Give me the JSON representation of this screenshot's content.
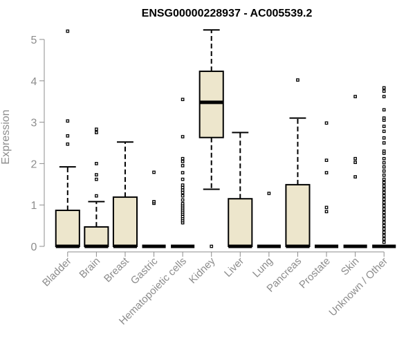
{
  "chart_data": {
    "type": "box",
    "title": "ENSG00000228937 - AC005539.2",
    "xlabel": "",
    "ylabel": "Expression",
    "ylim": [
      0,
      5.3
    ],
    "yticks": [
      0,
      1,
      2,
      3,
      4,
      5
    ],
    "grid": false,
    "box_fill": "#EDE6CC",
    "categories": [
      "Bladder",
      "Brain",
      "Breast",
      "Gastric",
      "Hematopoietic cells",
      "Kidney",
      "Liver",
      "Lung",
      "Pancreas",
      "Prostate",
      "Skin",
      "Unknown / Other"
    ],
    "boxes": [
      {
        "name": "Bladder",
        "lower_whisker": 0,
        "q1": 0,
        "median": 0,
        "q3": 0.87,
        "upper_whisker": 1.92,
        "outliers": [
          2.47,
          2.67,
          3.03,
          5.2
        ]
      },
      {
        "name": "Brain",
        "lower_whisker": 0,
        "q1": 0,
        "median": 0,
        "q3": 0.47,
        "upper_whisker": 1.08,
        "outliers": [
          1.22,
          1.62,
          1.73,
          2.0,
          2.75,
          2.83
        ]
      },
      {
        "name": "Breast",
        "lower_whisker": 0,
        "q1": 0,
        "median": 0,
        "q3": 1.19,
        "upper_whisker": 2.52,
        "outliers": []
      },
      {
        "name": "Gastric",
        "lower_whisker": 0,
        "q1": 0,
        "median": 0,
        "q3": 0,
        "upper_whisker": 0,
        "outliers": [
          1.04,
          1.08,
          1.79
        ]
      },
      {
        "name": "Hematopoietic cells",
        "lower_whisker": 0,
        "q1": 0,
        "median": 0,
        "q3": 0,
        "upper_whisker": 0,
        "outliers": [
          0.57,
          0.62,
          0.67,
          0.72,
          0.78,
          0.83,
          0.88,
          0.93,
          0.98,
          1.03,
          1.12,
          1.22,
          1.3,
          1.36,
          1.42,
          1.48,
          1.62,
          1.78,
          1.95,
          2.05,
          2.12,
          2.65,
          3.55
        ]
      },
      {
        "name": "Kidney",
        "lower_whisker": 1.38,
        "q1": 2.63,
        "median": 3.48,
        "q3": 4.23,
        "upper_whisker": 5.23,
        "outliers": [
          0
        ]
      },
      {
        "name": "Liver",
        "lower_whisker": 0,
        "q1": 0,
        "median": 0,
        "q3": 1.15,
        "upper_whisker": 2.75,
        "outliers": []
      },
      {
        "name": "Lung",
        "lower_whisker": 0,
        "q1": 0,
        "median": 0,
        "q3": 0,
        "upper_whisker": 0,
        "outliers": [
          1.28
        ]
      },
      {
        "name": "Pancreas",
        "lower_whisker": 0,
        "q1": 0,
        "median": 0,
        "q3": 1.49,
        "upper_whisker": 3.1,
        "outliers": [
          4.02
        ]
      },
      {
        "name": "Prostate",
        "lower_whisker": 0,
        "q1": 0,
        "median": 0,
        "q3": 0,
        "upper_whisker": 0,
        "outliers": [
          0.84,
          0.94,
          1.78,
          2.08,
          2.98
        ]
      },
      {
        "name": "Skin",
        "lower_whisker": 0,
        "q1": 0,
        "median": 0,
        "q3": 0,
        "upper_whisker": 0,
        "outliers": [
          1.68,
          2.03,
          2.12,
          3.62
        ]
      },
      {
        "name": "Unknown / Other",
        "lower_whisker": 0,
        "q1": 0,
        "median": 0,
        "q3": 0,
        "upper_whisker": 0,
        "outliers": [
          0.1,
          0.18,
          0.26,
          0.34,
          0.42,
          0.5,
          0.58,
          0.66,
          0.74,
          0.82,
          0.9,
          0.98,
          1.06,
          1.14,
          1.22,
          1.3,
          1.38,
          1.46,
          1.54,
          1.62,
          1.72,
          1.82,
          1.92,
          2.02,
          2.12,
          2.25,
          2.3,
          2.5,
          2.62,
          2.78,
          2.9,
          3.05,
          3.1,
          3.3,
          3.62,
          3.75,
          3.83
        ]
      }
    ]
  }
}
